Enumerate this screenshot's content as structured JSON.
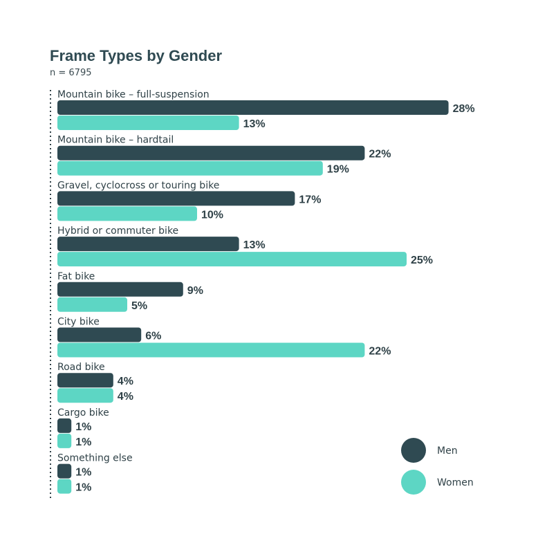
{
  "chart_data": {
    "type": "bar",
    "orientation": "horizontal",
    "title": "Frame Types by Gender",
    "subtitle": "n = 6795",
    "value_suffix": "%",
    "categories": [
      "Mountain bike – full-suspension",
      "Mountain bike – hardtail",
      "Gravel, cyclocross or touring bike",
      "Hybrid or commuter bike",
      "Fat bike",
      "City bike",
      "Road bike",
      "Cargo bike",
      "Something else"
    ],
    "series": [
      {
        "name": "Men",
        "color": "#2f4a52",
        "values": [
          28,
          22,
          17,
          13,
          9,
          6,
          4,
          1,
          1
        ]
      },
      {
        "name": "Women",
        "color": "#5dd6c4",
        "values": [
          13,
          19,
          10,
          25,
          5,
          22,
          4,
          1,
          1
        ]
      }
    ],
    "legend": {
      "position": "bottom-right"
    },
    "grid": false
  }
}
